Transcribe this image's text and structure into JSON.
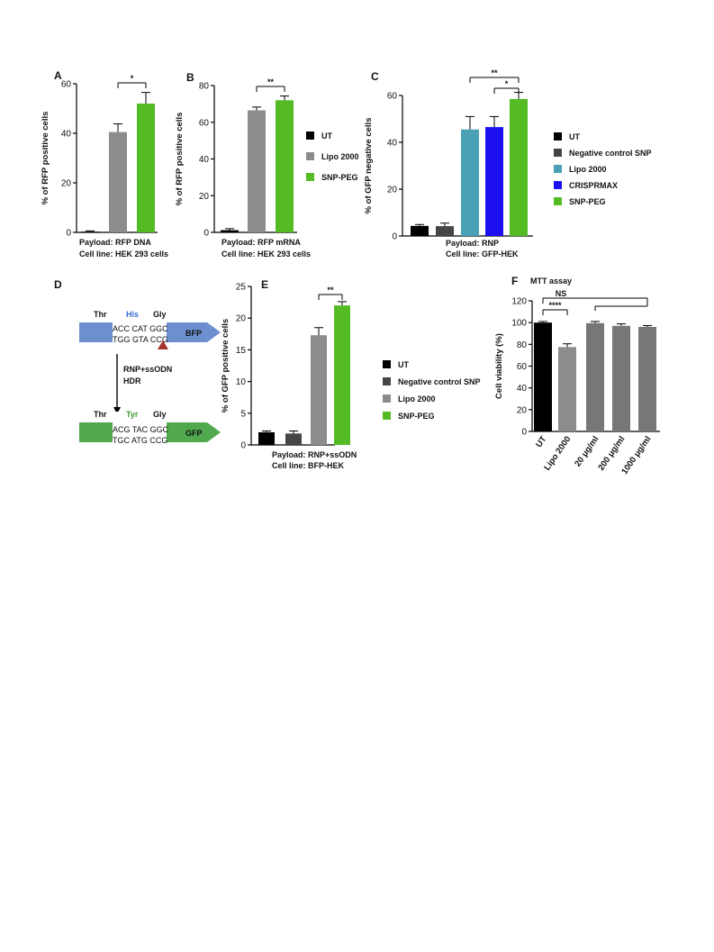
{
  "colors": {
    "UT": "#000000",
    "Negative control SNP": "#454545",
    "Lipo 2000": "#8c8c8c",
    "Lipo 2000 (C)": "#4aa0b4",
    "CRISPRMAX": "#1c10f0",
    "SNP-PEG": "#55bb25",
    "BFP": "#6d8fcf",
    "GFP": "#51a94d",
    "His": "#3b6bd0",
    "Tyr": "#3f9a37",
    "cut_site": "#a3312c"
  },
  "panel_D": {
    "letter": "D",
    "top": {
      "codons": [
        "Thr",
        "His",
        "Gly"
      ],
      "line1": "ACC CAT GGC",
      "line2": "TGG GTA CCG",
      "label": "BFP"
    },
    "arrow_label_1": "RNP+ssODN",
    "arrow_label_2": "HDR",
    "bottom": {
      "codons": [
        "Thr",
        "Tyr",
        "Gly"
      ],
      "line1": "ACG TAC GGC",
      "line2": "TGC ATG CCG",
      "label": "GFP"
    }
  },
  "legends": {
    "B": [
      "UT",
      "Lipo 2000",
      "SNP-PEG"
    ],
    "C": [
      "UT",
      "Negative control SNP",
      "Lipo 2000",
      "CRISPRMAX",
      "SNP-PEG"
    ],
    "E": [
      "UT",
      "Negative control SNP",
      "Lipo 2000",
      "SNP-PEG"
    ]
  },
  "chart_data": [
    {
      "id": "A",
      "type": "bar",
      "letter": "A",
      "ylabel": "% of RFP positive cells",
      "ylim": [
        0,
        60
      ],
      "yticks": [
        0,
        20,
        40,
        60
      ],
      "categories": [
        "UT",
        "Lipo 2000",
        "SNP-PEG"
      ],
      "values": [
        0.3,
        40.5,
        52
      ],
      "errors": [
        0.3,
        3.3,
        4.5
      ],
      "caption": [
        "Payload: RFP DNA",
        "Cell line: HEK 293 cells"
      ],
      "significance": [
        {
          "from": 1,
          "to": 2,
          "label": "*"
        }
      ]
    },
    {
      "id": "B",
      "type": "bar",
      "letter": "B",
      "ylabel": "% of RFP positive cells",
      "ylim": [
        0,
        80
      ],
      "yticks": [
        0,
        20,
        40,
        60,
        80
      ],
      "categories": [
        "UT",
        "Lipo 2000",
        "SNP-PEG"
      ],
      "values": [
        1.2,
        66.5,
        72
      ],
      "errors": [
        0.8,
        1.8,
        2.3
      ],
      "caption": [
        "Payload: RFP mRNA",
        "Cell line: HEK 293 cells"
      ],
      "significance": [
        {
          "from": 1,
          "to": 2,
          "label": "**"
        }
      ]
    },
    {
      "id": "C",
      "type": "bar",
      "letter": "C",
      "ylabel": "% of GFP negative cells",
      "ylim": [
        0,
        60
      ],
      "yticks": [
        0,
        20,
        40,
        60
      ],
      "categories": [
        "UT",
        "Negative control SNP",
        "Lipo 2000",
        "CRISPRMAX",
        "SNP-PEG"
      ],
      "values": [
        4.3,
        4.2,
        45.5,
        46.5,
        58.5
      ],
      "errors": [
        0.6,
        1.3,
        5.5,
        4.5,
        2.8
      ],
      "caption": [
        "Payload: RNP",
        "Cell line: GFP-HEK"
      ],
      "significance": [
        {
          "from": 2,
          "to": 4,
          "label": "**"
        },
        {
          "from": 3,
          "to": 4,
          "label": "*"
        }
      ]
    },
    {
      "id": "E",
      "type": "bar",
      "letter": "E",
      "ylabel": "% of GFP positive cells",
      "ylim": [
        0,
        25
      ],
      "yticks": [
        0,
        5,
        10,
        15,
        20,
        25
      ],
      "categories": [
        "UT",
        "Negative control SNP",
        "Lipo 2000",
        "SNP-PEG"
      ],
      "values": [
        2.0,
        1.8,
        17.3,
        22.0
      ],
      "errors": [
        0.2,
        0.4,
        1.2,
        0.6
      ],
      "caption": [
        "Payload: RNP+ssODN",
        "Cell line: BFP-HEK"
      ],
      "significance": [
        {
          "from": 2,
          "to": 3,
          "label": "**"
        }
      ]
    },
    {
      "id": "F",
      "type": "bar",
      "letter": "F",
      "title": "MTT assay",
      "ylabel": "Cell viability (%)",
      "ylim": [
        0,
        120
      ],
      "yticks": [
        0,
        20,
        40,
        60,
        80,
        100,
        120
      ],
      "categories": [
        "UT",
        "Lipo 2000",
        "20 μg/ml",
        "200 μg/ml",
        "1000 μg/ml"
      ],
      "values": [
        100,
        77.5,
        99.5,
        97,
        96
      ],
      "errors": [
        1.0,
        3.0,
        1.5,
        1.8,
        1.2
      ],
      "significance": [
        {
          "from": 0,
          "to": 1,
          "label": "****"
        },
        {
          "from": 0,
          "to": 4,
          "label": "NS",
          "group_from": 2
        }
      ]
    }
  ]
}
